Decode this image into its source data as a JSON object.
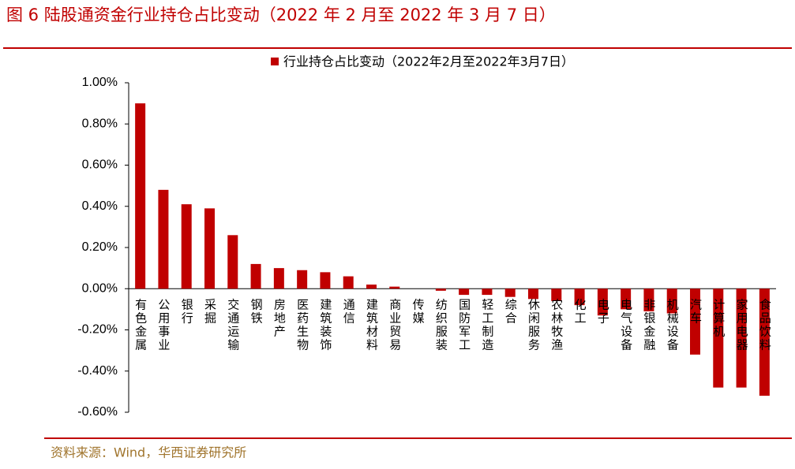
{
  "header": {
    "title": "图 6  陆股通资金行业持仓占比变动（2022 年 2 月至 2022 年 3 月 7 日）"
  },
  "chart_data": {
    "type": "bar",
    "categories": [
      "有色金属",
      "公用事业",
      "银行",
      "采掘",
      "交通运输",
      "钢铁",
      "房地产",
      "医药生物",
      "建筑装饰",
      "通信",
      "建筑材料",
      "商业贸易",
      "传媒",
      "纺织服装",
      "国防军工",
      "轻工制造",
      "综合",
      "休闲服务",
      "农林牧渔",
      "化工",
      "电子",
      "电气设备",
      "非银金融",
      "机械设备",
      "汽车",
      "计算机",
      "家用电器",
      "食品饮料"
    ],
    "series": [
      {
        "name": "行业持仓占比变动（2022年2月至2022年3月7日）",
        "color": "#c00000",
        "values": [
          0.9,
          0.48,
          0.41,
          0.39,
          0.26,
          0.12,
          0.1,
          0.09,
          0.08,
          0.06,
          0.02,
          0.01,
          0,
          -0.01,
          -0.03,
          -0.03,
          -0.04,
          -0.05,
          -0.06,
          -0.08,
          -0.13,
          -0.1,
          -0.11,
          -0.12,
          -0.32,
          -0.48,
          -0.48,
          -0.52
        ]
      }
    ],
    "ylim": [
      -0.6,
      1
    ],
    "yticks": [
      {
        "value": -0.6,
        "label": "-0.60%"
      },
      {
        "value": -0.4,
        "label": "-0.40%"
      },
      {
        "value": -0.2,
        "label": "-0.20%"
      },
      {
        "value": 0,
        "label": "0.00%"
      },
      {
        "value": 0.2,
        "label": "0.20%"
      },
      {
        "value": 0.4,
        "label": "0.40%"
      },
      {
        "value": 0.6,
        "label": "0.60%"
      },
      {
        "value": 0.8,
        "label": "0.80%"
      },
      {
        "value": 1,
        "label": "1.00%"
      }
    ],
    "legend": "top"
  },
  "footer": {
    "source": "资料来源：Wind，华西证券研究所"
  }
}
